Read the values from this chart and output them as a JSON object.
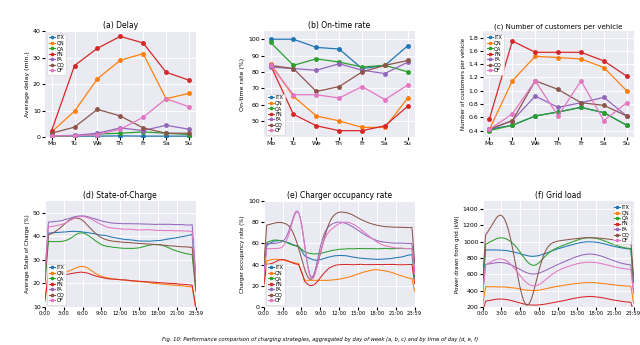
{
  "days": [
    "Mo",
    "Tu",
    "We",
    "Th",
    "Fr",
    "Sa",
    "Su"
  ],
  "strategies": [
    "ITX",
    "QN",
    "QA",
    "FN",
    "FA",
    "OQ",
    "OF"
  ],
  "colors": {
    "ITX": "#1f77b4",
    "QN": "#ff7f0e",
    "QA": "#2ca02c",
    "FN": "#d62728",
    "FA": "#9467bd",
    "OQ": "#8c564b",
    "OF": "#e377c2"
  },
  "delay": {
    "ITX": [
      0.4,
      0.4,
      0.4,
      0.5,
      0.4,
      0.4,
      0.4
    ],
    "QN": [
      2.0,
      9.8,
      22.0,
      29.0,
      31.5,
      14.5,
      16.5
    ],
    "QA": [
      0.3,
      0.5,
      1.2,
      1.5,
      2.0,
      1.5,
      1.0
    ],
    "FN": [
      2.5,
      27.0,
      33.5,
      38.0,
      35.5,
      24.5,
      21.5
    ],
    "FA": [
      0.5,
      0.7,
      1.5,
      3.5,
      2.5,
      4.5,
      3.0
    ],
    "OQ": [
      1.5,
      3.8,
      10.5,
      8.0,
      3.5,
      1.5,
      1.5
    ],
    "OF": [
      0.5,
      0.5,
      1.0,
      3.0,
      7.5,
      14.5,
      11.5
    ]
  },
  "ontime": {
    "ITX": [
      100,
      100,
      95,
      94,
      82,
      84,
      96
    ],
    "QN": [
      85,
      65,
      53,
      50,
      46,
      46,
      64
    ],
    "QA": [
      98,
      84,
      88,
      86,
      83,
      84,
      80
    ],
    "FN": [
      84,
      54,
      47,
      44,
      44,
      47,
      59
    ],
    "FA": [
      83,
      82,
      81,
      85,
      81,
      79,
      86
    ],
    "OQ": [
      84,
      82,
      68,
      71,
      80,
      84,
      87
    ],
    "OF": [
      84,
      66,
      66,
      64,
      71,
      63,
      72
    ]
  },
  "customers": {
    "ITX": [
      0.42,
      0.48,
      0.62,
      0.68,
      0.75,
      0.67,
      0.48
    ],
    "QN": [
      0.42,
      1.15,
      1.52,
      1.5,
      1.48,
      1.35,
      1.0
    ],
    "QA": [
      0.4,
      0.48,
      0.62,
      0.68,
      0.75,
      0.67,
      0.48
    ],
    "FN": [
      0.58,
      1.75,
      1.58,
      1.58,
      1.58,
      1.45,
      1.22
    ],
    "FA": [
      0.42,
      0.55,
      0.92,
      0.75,
      0.82,
      0.9,
      0.62
    ],
    "OQ": [
      0.42,
      0.55,
      1.15,
      1.02,
      0.82,
      0.78,
      0.62
    ],
    "OF": [
      0.42,
      0.65,
      1.15,
      0.62,
      1.15,
      0.55,
      0.82
    ]
  },
  "time_labels": [
    "0:00",
    "3:00",
    "6:00",
    "9:00",
    "12:00",
    "15:00",
    "18:00",
    "21:00",
    "23:59"
  ],
  "background_color": "#eaeaf2",
  "grid_color": "white",
  "subplot_titles": [
    "(a) Delay",
    "(b) On-time rate",
    "(c) Number of customers per vehicle",
    "(d) State-of-Charge",
    "(e) Charger occupancy rate",
    "(f) Grid load"
  ],
  "ylabels": [
    "Average delay (min.)",
    "On-time rate (%)",
    "Number of customers per vehicle",
    "Average State of Charge (%)",
    "Charger occupancy rate (%)",
    "Power drawn from grid (kW)"
  ],
  "caption": "Fig. 10: Performance comparison of charging strategies, aggregated by day of week (a, b, c) and by time of day (d, e, f)"
}
